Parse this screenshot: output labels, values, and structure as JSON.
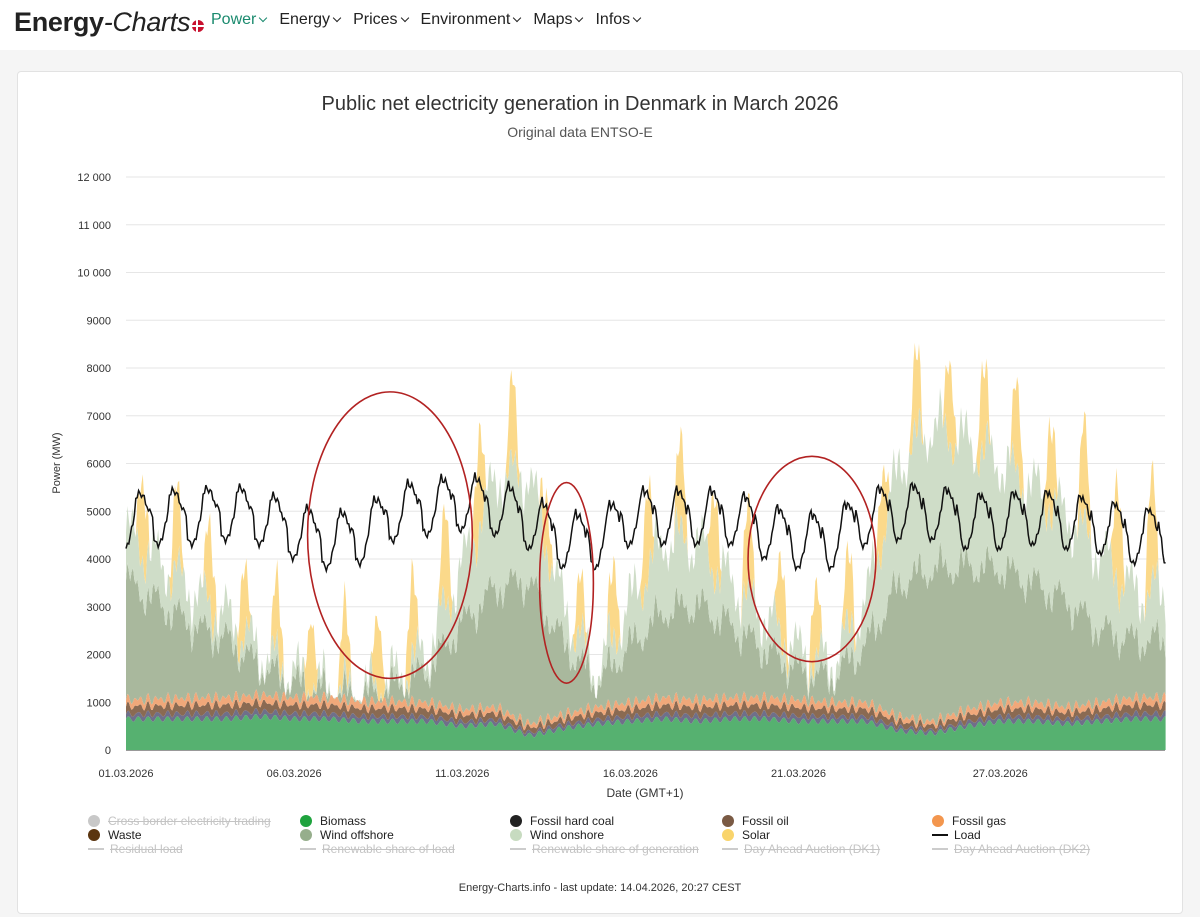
{
  "header": {
    "brand_bold": "Energy",
    "brand_italic": "-Charts",
    "nav": [
      {
        "label": "Power",
        "active": true
      },
      {
        "label": "Energy",
        "active": false
      },
      {
        "label": "Prices",
        "active": false
      },
      {
        "label": "Environment",
        "active": false
      },
      {
        "label": "Maps",
        "active": false
      },
      {
        "label": "Infos",
        "active": false
      }
    ]
  },
  "chart_data": {
    "type": "area",
    "title": "Public net electricity generation in Denmark in March 2026",
    "subtitle": "Original data ENTSO-E",
    "ylabel": "Power (MW)",
    "xlabel": "Date (GMT+1)",
    "ylim": [
      0,
      12000
    ],
    "xlim": [
      1,
      31.9
    ],
    "yticks": [
      0,
      1000,
      2000,
      3000,
      4000,
      5000,
      6000,
      7000,
      8000,
      9000,
      "10 000",
      "11 000",
      "12 000"
    ],
    "xticks": [
      {
        "day": 1,
        "label": "01.03.2026"
      },
      {
        "day": 6,
        "label": "06.03.2026"
      },
      {
        "day": 11,
        "label": "11.03.2026"
      },
      {
        "day": 16,
        "label": "16.03.2026"
      },
      {
        "day": 21,
        "label": "21.03.2026"
      },
      {
        "day": 27,
        "label": "27.03.2026"
      }
    ],
    "series_daily_approx": {
      "days": [
        1,
        2,
        3,
        4,
        5,
        6,
        7,
        8,
        9,
        10,
        11,
        12,
        13,
        14,
        15,
        16,
        17,
        18,
        19,
        20,
        21,
        22,
        23,
        24,
        25,
        26,
        27,
        28,
        29,
        30,
        31
      ],
      "biomass": [
        650,
        650,
        650,
        650,
        700,
        650,
        650,
        600,
        600,
        600,
        500,
        550,
        300,
        450,
        550,
        600,
        650,
        600,
        650,
        650,
        600,
        600,
        600,
        400,
        350,
        500,
        600,
        600,
        550,
        600,
        650
      ],
      "other_fossil_waste": [
        400,
        420,
        450,
        450,
        450,
        450,
        450,
        420,
        420,
        400,
        350,
        350,
        250,
        300,
        350,
        400,
        450,
        450,
        450,
        450,
        450,
        400,
        400,
        300,
        250,
        350,
        400,
        400,
        350,
        400,
        450
      ],
      "wind_offshore": [
        2500,
        2000,
        1500,
        1200,
        600,
        300,
        100,
        100,
        300,
        700,
        1800,
        2500,
        3000,
        1500,
        500,
        1200,
        1800,
        2000,
        1500,
        1000,
        600,
        500,
        1200,
        2800,
        3200,
        3000,
        2800,
        2500,
        2200,
        1500,
        1200
      ],
      "wind_onshore": [
        1000,
        900,
        700,
        500,
        300,
        200,
        100,
        100,
        200,
        400,
        1200,
        2300,
        2200,
        800,
        200,
        900,
        1500,
        1300,
        900,
        700,
        400,
        300,
        900,
        2500,
        3000,
        2600,
        2200,
        2000,
        1800,
        1600,
        1000
      ],
      "solar_peak": [
        1900,
        1500,
        1800,
        1600,
        1400,
        1500,
        1500,
        1400,
        1700,
        1800,
        2000,
        2200,
        1200,
        1200,
        1100,
        1900,
        1900,
        1800,
        1800,
        1700,
        1600,
        1500,
        1500,
        1600,
        1700,
        1700,
        1800,
        1800,
        2000,
        2100,
        2300
      ],
      "load": [
        4900,
        5000,
        5000,
        5100,
        5000,
        4700,
        4500,
        4600,
        5100,
        5200,
        5300,
        5200,
        4900,
        4500,
        4500,
        5000,
        5000,
        5000,
        5000,
        4700,
        4500,
        4500,
        5000,
        5100,
        5100,
        4900,
        4900,
        5000,
        4900,
        4800,
        4600
      ]
    },
    "annotations": [
      {
        "shape": "ellipse",
        "color": "#b22222",
        "x_from_day": 6.4,
        "x_to_day": 11.3,
        "y_from": 1500,
        "y_to": 7500
      },
      {
        "shape": "ellipse",
        "color": "#b22222",
        "x_from_day": 13.3,
        "x_to_day": 14.9,
        "y_from": 1400,
        "y_to": 5600
      },
      {
        "shape": "ellipse",
        "color": "#b22222",
        "x_from_day": 19.5,
        "x_to_day": 23.3,
        "y_from": 1850,
        "y_to": 6150
      }
    ]
  },
  "legend": [
    {
      "label": "Cross border electricity trading",
      "color": "#c8c8c8",
      "kind": "dot",
      "off": true
    },
    {
      "label": "Biomass",
      "color": "#1fa33e",
      "kind": "dot",
      "off": false
    },
    {
      "label": "Fossil hard coal",
      "color": "#222222",
      "kind": "dot",
      "off": false
    },
    {
      "label": "Fossil oil",
      "color": "#7a5a44",
      "kind": "dot",
      "off": false
    },
    {
      "label": "Fossil gas",
      "color": "#f3964e",
      "kind": "dot",
      "off": false
    },
    {
      "label": "Waste",
      "color": "#5b3510",
      "kind": "dot",
      "off": false
    },
    {
      "label": "Wind offshore",
      "color": "#96ae8c",
      "kind": "dot",
      "off": false
    },
    {
      "label": "Wind onshore",
      "color": "#c7dbc0",
      "kind": "dot",
      "off": false
    },
    {
      "label": "Solar",
      "color": "#f9d46b",
      "kind": "dot",
      "off": false
    },
    {
      "label": "Load",
      "color": "#111111",
      "kind": "line",
      "off": false
    },
    {
      "label": "Residual load",
      "color": "#cccccc",
      "kind": "line",
      "off": true
    },
    {
      "label": "Renewable share of load",
      "color": "#cccccc",
      "kind": "line",
      "off": true
    },
    {
      "label": "Renewable share of generation",
      "color": "#cccccc",
      "kind": "line",
      "off": true
    },
    {
      "label": "Day Ahead Auction (DK1)",
      "color": "#cccccc",
      "kind": "line",
      "off": true
    },
    {
      "label": "Day Ahead Auction (DK2)",
      "color": "#cccccc",
      "kind": "line",
      "off": true
    }
  ],
  "footer": "Energy-Charts.info - last update: 14.04.2026, 20:27 CEST"
}
